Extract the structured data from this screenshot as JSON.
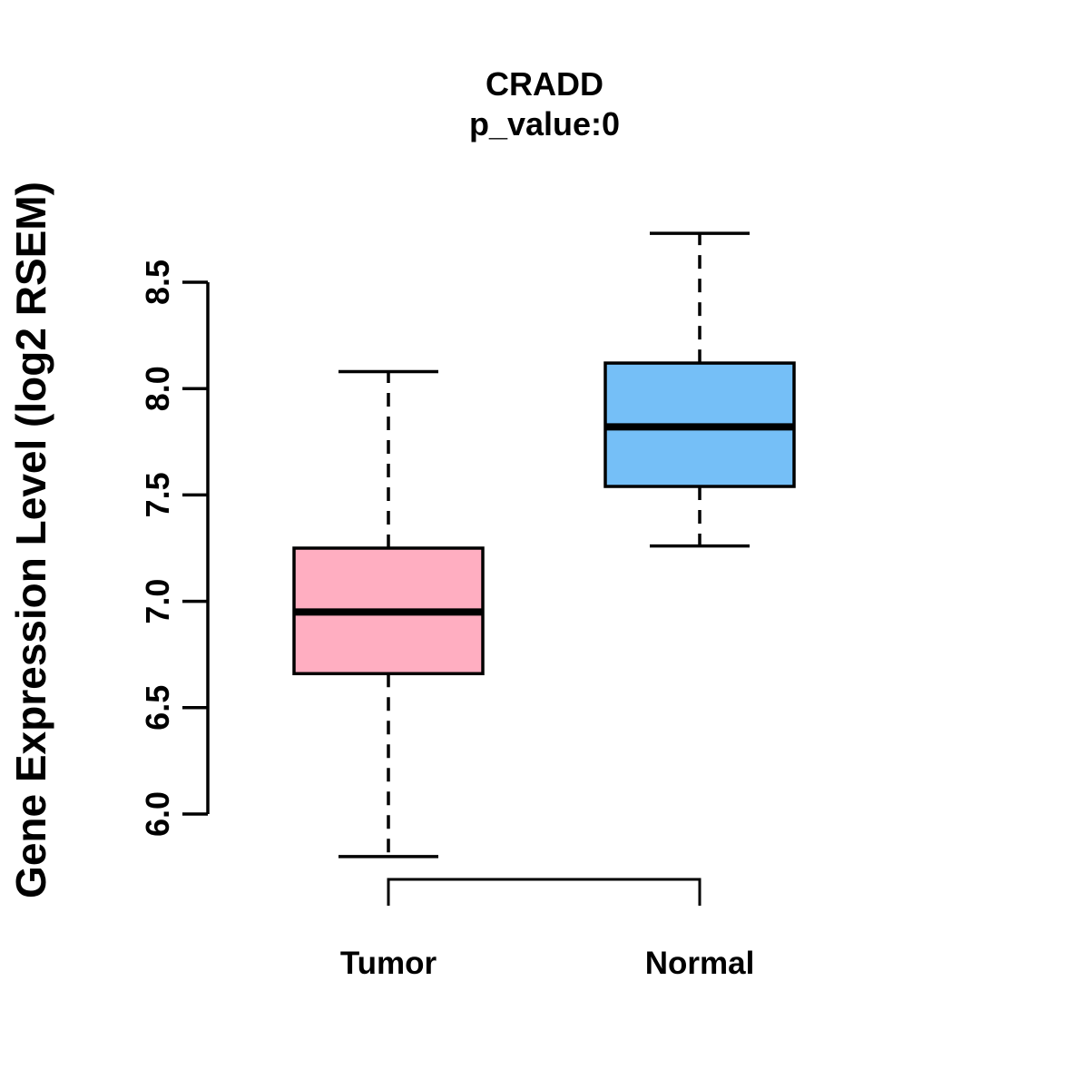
{
  "figure": {
    "background": "#FFFFFF",
    "text_color": "#000000"
  },
  "chart_data": {
    "type": "boxplot",
    "title": "CRADD",
    "subtitle": "p_value:0",
    "ylabel": "Gene Expression Level (log2 RSEM)",
    "xlabel": "",
    "grid": false,
    "legend": false,
    "ylim": [
      5.6,
      8.9
    ],
    "yticks": [
      6.0,
      6.5,
      7.0,
      7.5,
      8.0,
      8.5
    ],
    "ytick_labels": [
      "6.0",
      "6.5",
      "7.0",
      "7.5",
      "8.0",
      "8.5"
    ],
    "categories": [
      "Tumor",
      "Normal"
    ],
    "series": [
      {
        "name": "Tumor",
        "box_color": "#FFAEC1",
        "whisker_low": 5.8,
        "q1": 6.66,
        "median": 6.95,
        "q3": 7.25,
        "whisker_high": 8.08
      },
      {
        "name": "Normal",
        "box_color": "#75BFF7",
        "whisker_low": 7.26,
        "q1": 7.54,
        "median": 7.82,
        "q3": 8.12,
        "whisker_high": 8.73
      }
    ],
    "comparison_bracket": {
      "between": [
        "Tumor",
        "Normal"
      ]
    },
    "line_color": "#000000"
  }
}
